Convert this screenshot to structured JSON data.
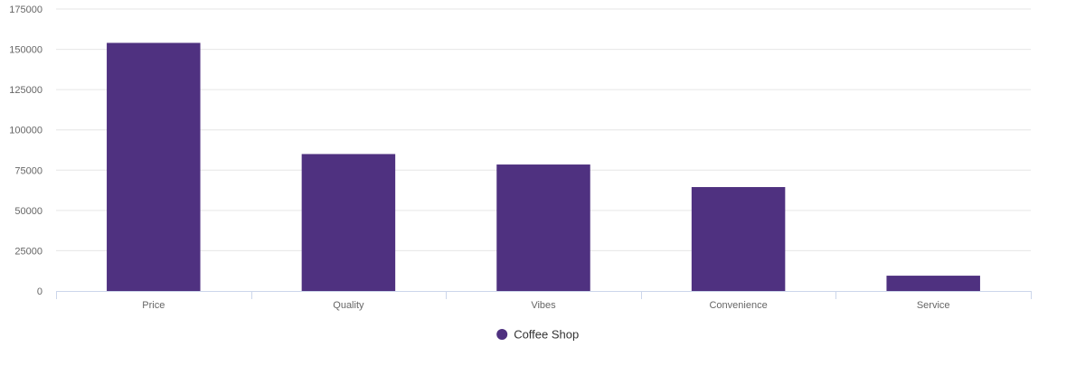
{
  "chart_data": {
    "type": "bar",
    "title": "",
    "xlabel": "",
    "ylabel": "",
    "categories": [
      "Price",
      "Quality",
      "Vibes",
      "Convenience",
      "Service"
    ],
    "series": [
      {
        "name": "Coffee Shop",
        "color": "#4f3180",
        "values": [
          154000,
          85000,
          78500,
          64500,
          9500
        ]
      }
    ],
    "ylim": [
      0,
      175000
    ],
    "yticks": [
      0,
      25000,
      50000,
      75000,
      100000,
      125000,
      150000,
      175000
    ],
    "grid": true,
    "legend_position": "bottom-center"
  }
}
